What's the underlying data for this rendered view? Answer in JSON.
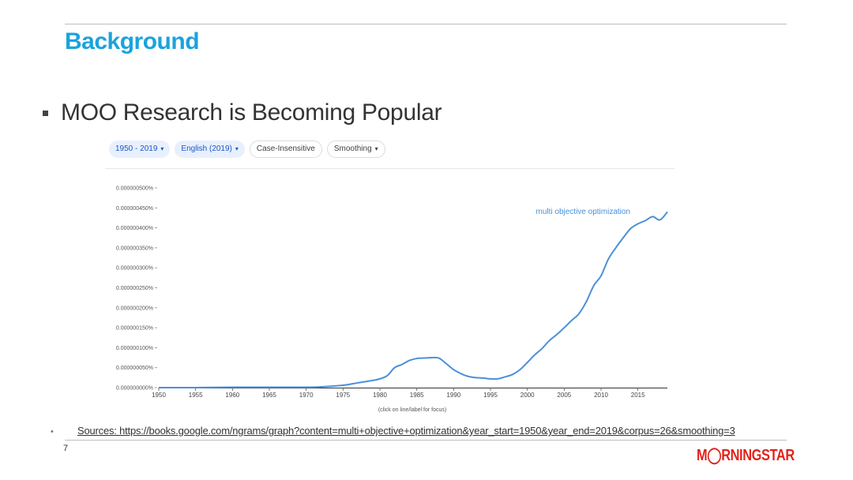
{
  "slide": {
    "title": "Background",
    "bullet": "MOO Research is Becoming Popular",
    "source": "Sources: https://books.google.com/ngrams/graph?content=multi+objective+optimization&year_start=1950&year_end=2019&corpus=26&smoothing=3",
    "source_bullet": "•",
    "page_number": "7",
    "logo": "M◯RNINGSTAR"
  },
  "toolbar": {
    "year_range": "1950 - 2019",
    "corpus": "English (2019)",
    "case": "Case-Insensitive",
    "smoothing": "Smoothing",
    "caret": "▾"
  },
  "colors": {
    "title": "#1aa3dd",
    "series": "#4a90d9",
    "logo": "#e2231a"
  },
  "chart_data": {
    "type": "line",
    "x_ticks": [
      1950,
      1955,
      1960,
      1965,
      1970,
      1975,
      1980,
      1985,
      1990,
      1995,
      2000,
      2005,
      2010,
      2015
    ],
    "y_ticks": [
      "0.000000000%",
      "0.000000050%",
      "0.000000100%",
      "0.000000150%",
      "0.000000200%",
      "0.000000250%",
      "0.000000300%",
      "0.000000350%",
      "0.000000400%",
      "0.000000450%",
      "0.000000500%"
    ],
    "xlim": [
      1950,
      2019
    ],
    "ylim": [
      0,
      5e-07
    ],
    "series": [
      {
        "name": "multi objective optimization",
        "x": [
          1950,
          1955,
          1960,
          1965,
          1970,
          1972,
          1975,
          1977,
          1979,
          1980,
          1981,
          1982,
          1983,
          1984,
          1985,
          1986,
          1987,
          1988,
          1989,
          1990,
          1991,
          1992,
          1993,
          1994,
          1995,
          1996,
          1997,
          1998,
          1999,
          2000,
          2001,
          2002,
          2003,
          2004,
          2005,
          2006,
          2007,
          2008,
          2009,
          2010,
          2011,
          2012,
          2013,
          2014,
          2015,
          2016,
          2017,
          2018,
          2019
        ],
        "y": [
          0,
          0,
          1e-09,
          1e-09,
          1e-09,
          2e-09,
          6e-09,
          1.2e-08,
          1.8e-08,
          2.2e-08,
          3e-08,
          5e-08,
          5.8e-08,
          6.8e-08,
          7.3e-08,
          7.4e-08,
          7.5e-08,
          7.4e-08,
          6e-08,
          4.5e-08,
          3.5e-08,
          2.8e-08,
          2.5e-08,
          2.4e-08,
          2.2e-08,
          2.2e-08,
          2.7e-08,
          3.3e-08,
          4.5e-08,
          6.3e-08,
          8.2e-08,
          9.8e-08,
          1.18e-07,
          1.33e-07,
          1.5e-07,
          1.68e-07,
          1.85e-07,
          2.15e-07,
          2.55e-07,
          2.8e-07,
          3.22e-07,
          3.5e-07,
          3.75e-07,
          3.98e-07,
          4.1e-07,
          4.18e-07,
          4.28e-07,
          4.2e-07,
          4.4e-07
        ]
      }
    ],
    "series_label": "multi objective optimization",
    "footnote": "(click on line/label for focus)",
    "grid": false
  }
}
